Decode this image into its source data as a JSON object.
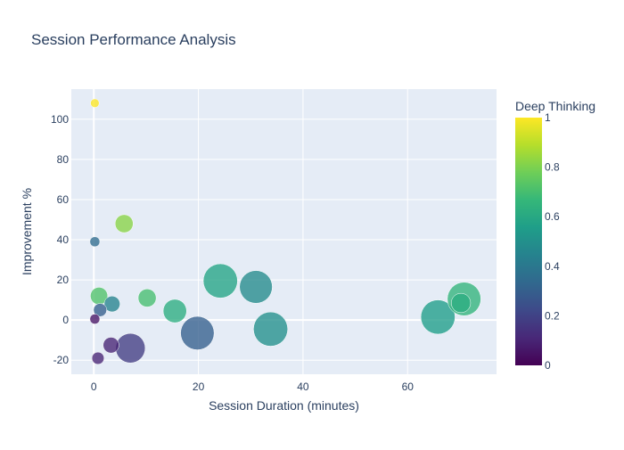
{
  "chart_data": {
    "type": "scatter",
    "title": "Session Performance Analysis",
    "xlabel": "Session Duration (minutes)",
    "ylabel": "Improvement %",
    "xlim": [
      -4.3,
      77
    ],
    "ylim": [
      -27,
      115
    ],
    "x_ticks": [
      0,
      20,
      40,
      60
    ],
    "y_ticks": [
      -20,
      0,
      20,
      40,
      60,
      80,
      100
    ],
    "grid": true,
    "plot_background": "#e5ecf6",
    "colorbar": {
      "title": "Deep Thinking",
      "min": 0,
      "max": 1,
      "ticks": [
        0,
        0.2,
        0.4,
        0.6,
        0.8,
        1
      ],
      "tick_labels": [
        "0",
        "0.2",
        "0.4",
        "0.6",
        "0.8",
        "1"
      ],
      "colorscale": "viridis"
    },
    "points": [
      {
        "x": 0.2,
        "y": 108,
        "color_value": 1.0,
        "size_rel": 0.03
      },
      {
        "x": 0.2,
        "y": 39,
        "color_value": 0.35,
        "size_rel": 0.04
      },
      {
        "x": 0.2,
        "y": 0.5,
        "color_value": 0.05,
        "size_rel": 0.04
      },
      {
        "x": 1.0,
        "y": 12,
        "color_value": 0.72,
        "size_rel": 0.12
      },
      {
        "x": 1.2,
        "y": 5,
        "color_value": 0.3,
        "size_rel": 0.07
      },
      {
        "x": 0.8,
        "y": -19,
        "color_value": 0.1,
        "size_rel": 0.06
      },
      {
        "x": 3.5,
        "y": 8,
        "color_value": 0.45,
        "size_rel": 0.1
      },
      {
        "x": 3.3,
        "y": -12.5,
        "color_value": 0.1,
        "size_rel": 0.1
      },
      {
        "x": 5.8,
        "y": 48,
        "color_value": 0.82,
        "size_rel": 0.13
      },
      {
        "x": 7.0,
        "y": -14,
        "color_value": 0.18,
        "size_rel": 0.35
      },
      {
        "x": 10.2,
        "y": 11,
        "color_value": 0.7,
        "size_rel": 0.13
      },
      {
        "x": 15.5,
        "y": 4.5,
        "color_value": 0.62,
        "size_rel": 0.22
      },
      {
        "x": 19.8,
        "y": -6.5,
        "color_value": 0.3,
        "size_rel": 0.45
      },
      {
        "x": 24.2,
        "y": 19.5,
        "color_value": 0.58,
        "size_rel": 0.47
      },
      {
        "x": 31.0,
        "y": 16.5,
        "color_value": 0.48,
        "size_rel": 0.43
      },
      {
        "x": 33.8,
        "y": -4.5,
        "color_value": 0.5,
        "size_rel": 0.47
      },
      {
        "x": 65.8,
        "y": 1.5,
        "color_value": 0.55,
        "size_rel": 0.47
      },
      {
        "x": 70.2,
        "y": 8.5,
        "color_value": 0.62,
        "size_rel": 0.15
      },
      {
        "x": 70.8,
        "y": 10.5,
        "color_value": 0.65,
        "size_rel": 0.45
      }
    ]
  }
}
